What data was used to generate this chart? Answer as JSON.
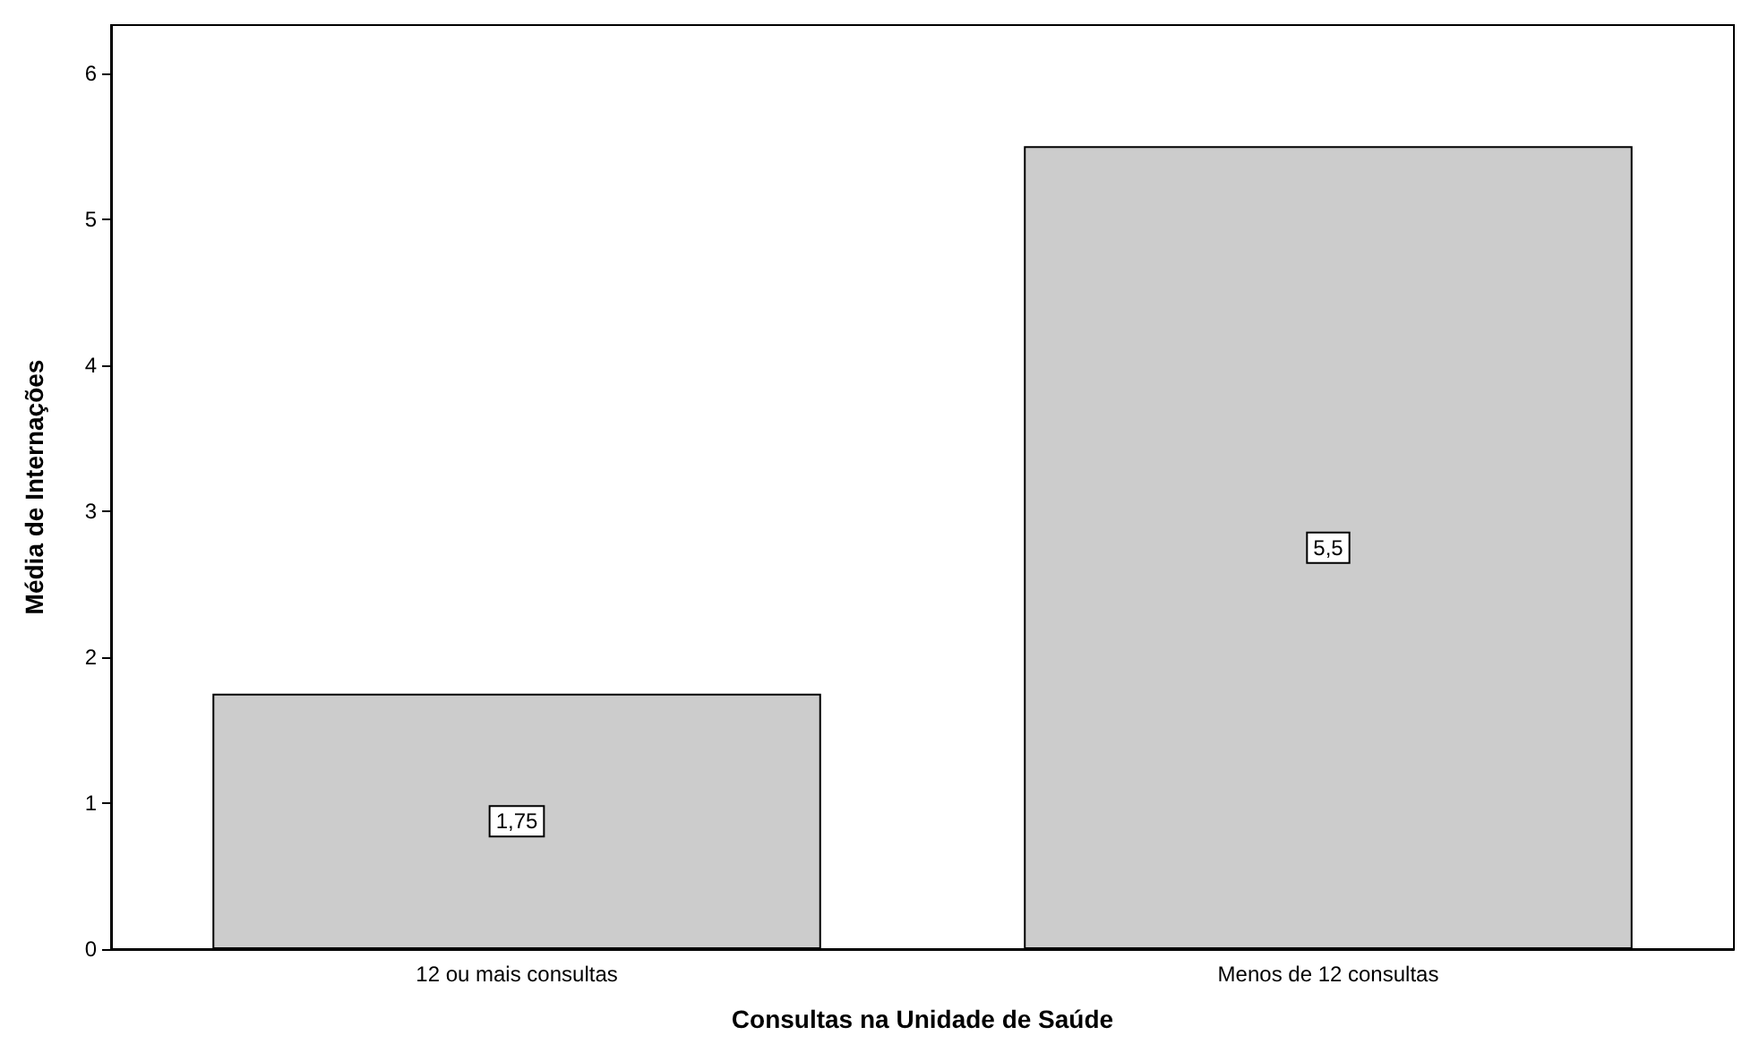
{
  "chart_data": {
    "type": "bar",
    "xlabel": "Consultas na Unidade de Saúde",
    "ylabel": "Média de Internações",
    "categories": [
      "12 ou mais consultas",
      "Menos de 12 consultas"
    ],
    "values": [
      1.75,
      5.5
    ],
    "value_labels": [
      "1,75",
      "5,5"
    ],
    "color": "#cccccc",
    "ylim": [
      0,
      6.33
    ],
    "yticks": [
      0,
      1,
      2,
      3,
      4,
      5,
      6
    ],
    "grid": false
  }
}
